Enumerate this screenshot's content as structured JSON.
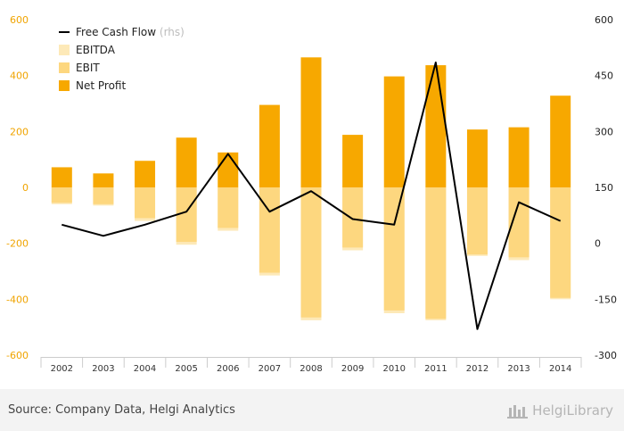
{
  "chart_data": {
    "type": "bar",
    "categories": [
      "2002",
      "2003",
      "2004",
      "2005",
      "2006",
      "2007",
      "2008",
      "2009",
      "2010",
      "2011",
      "2012",
      "2013",
      "2014"
    ],
    "series": [
      {
        "name": "EBITDA",
        "axis": "left",
        "values": [
          -60,
          -65,
          -120,
          -205,
          -155,
          -315,
          -475,
          -225,
          -450,
          -475,
          -245,
          -260,
          -400
        ]
      },
      {
        "name": "EBIT",
        "axis": "left",
        "values": [
          -55,
          -60,
          -110,
          -195,
          -145,
          -305,
          -465,
          -215,
          -440,
          -470,
          -240,
          -250,
          -395
        ]
      },
      {
        "name": "Net Profit",
        "axis": "left",
        "values": [
          72,
          50,
          95,
          178,
          125,
          295,
          465,
          188,
          397,
          437,
          207,
          215,
          328
        ]
      },
      {
        "name": "Free Cash Flow",
        "axis": "right",
        "type": "line",
        "values": [
          50,
          20,
          50,
          85,
          240,
          85,
          140,
          65,
          50,
          485,
          -230,
          110,
          60
        ]
      }
    ],
    "left_axis": {
      "ylim": [
        -600,
        600
      ],
      "ticks": [
        "600",
        "400",
        "200",
        "0",
        "-200",
        "-400",
        "-600"
      ],
      "tick_values": [
        600,
        400,
        200,
        0,
        -200,
        -400,
        -600
      ]
    },
    "right_axis": {
      "ylim": [
        -300,
        600
      ],
      "ticks": [
        "600",
        "450",
        "300",
        "150",
        "0",
        "-150",
        "-300"
      ],
      "tick_values": [
        600,
        450,
        300,
        150,
        0,
        -150,
        -300
      ]
    },
    "legend": {
      "placement": "top-left",
      "items": [
        {
          "label": "Free Cash Flow",
          "suffix": "(rhs)",
          "type": "line",
          "color": "#000000"
        },
        {
          "label": "EBITDA",
          "type": "box",
          "color": "#fde9b8"
        },
        {
          "label": "EBIT",
          "type": "box",
          "color": "#fdd77f"
        },
        {
          "label": "Net Profit",
          "type": "box",
          "color": "#f7a800"
        }
      ]
    },
    "colors": {
      "ebitda": "#fde9b8",
      "ebit": "#fdd77f",
      "net_profit": "#f7a800",
      "fcf": "#000000",
      "left_tick": "#f0a400"
    },
    "grid": false
  },
  "footer": {
    "source": "Source: Company Data, Helgi Analytics",
    "logo": "HelgiLibrary"
  }
}
